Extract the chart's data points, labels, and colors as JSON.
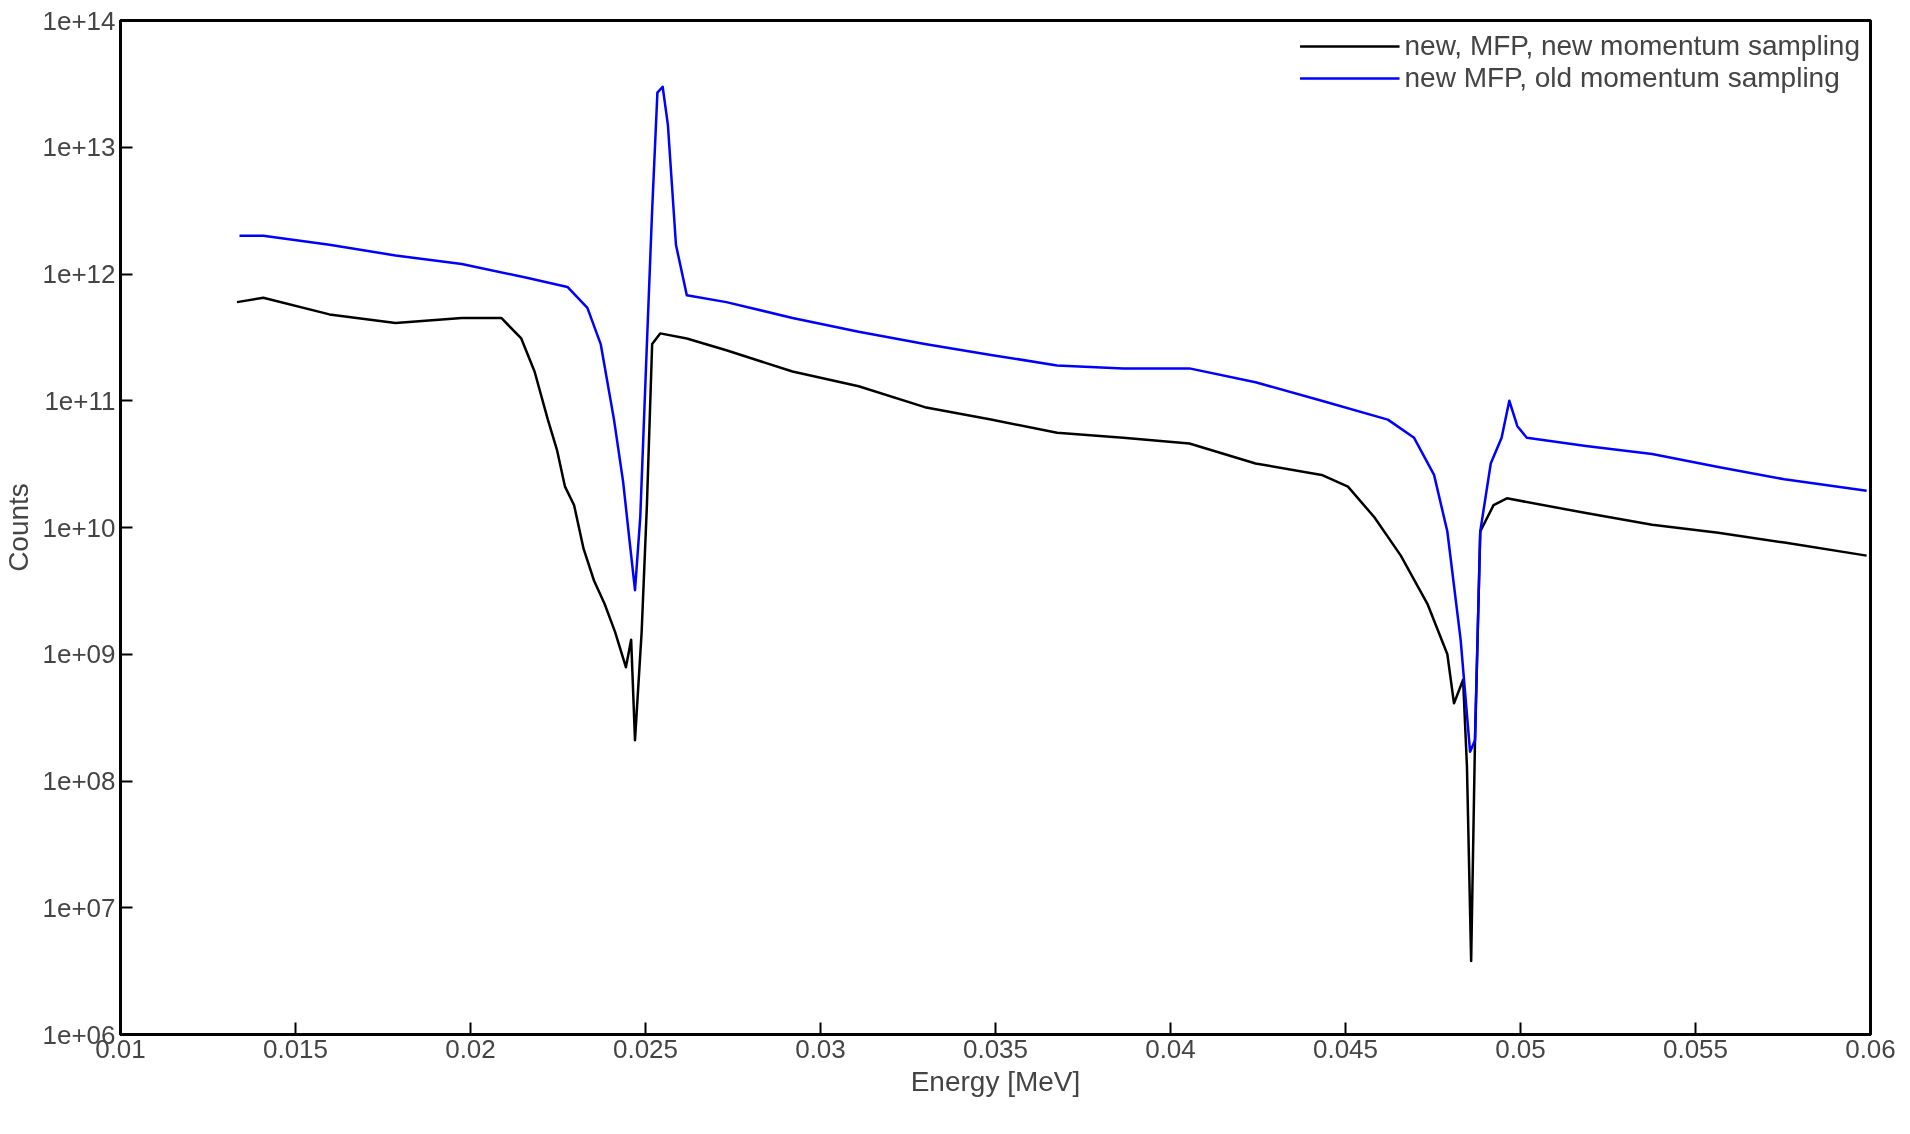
{
  "chart_data": {
    "type": "line",
    "xlabel": "Energy [MeV]",
    "ylabel": "Counts",
    "log": "y",
    "grid": false,
    "legend": "top right",
    "marker": "none",
    "line_style": "solid",
    "xlim": [
      0.01,
      0.06
    ],
    "xticks": [
      0.01,
      0.015,
      0.02,
      0.025,
      0.03,
      0.035,
      0.04,
      0.045,
      0.05,
      0.055,
      0.06
    ],
    "ylim": [
      1000000.0,
      100000000000000.0
    ],
    "yticks": [
      {
        "value": 1000000.0,
        "label": "1e+06"
      },
      {
        "value": 10000000.0,
        "label": "1e+07"
      },
      {
        "value": 100000000.0,
        "label": "1e+08"
      },
      {
        "value": 1000000000.0,
        "label": "1e+09"
      },
      {
        "value": 10000000000.0,
        "label": "1e+10"
      },
      {
        "value": 100000000000.0,
        "label": "1e+11"
      },
      {
        "value": 1000000000000.0,
        "label": "1e+12"
      },
      {
        "value": 10000000000000.0,
        "label": "1e+13"
      },
      {
        "value": 100000000000000.0,
        "label": "1e+14"
      }
    ],
    "series": [
      {
        "name": "new, MFP, new momentum sampling",
        "color": "#000000",
        "x": [
          0.01333,
          0.01408,
          0.01597,
          0.01786,
          0.01975,
          0.02088,
          0.02145,
          0.02183,
          0.02221,
          0.02247,
          0.0227,
          0.02296,
          0.02323,
          0.02353,
          0.02383,
          0.02413,
          0.02444,
          0.02459,
          0.0247,
          0.02489,
          0.02504,
          0.02519,
          0.02542,
          0.02618,
          0.02731,
          0.0292,
          0.03109,
          0.03298,
          0.03487,
          0.03676,
          0.03865,
          0.04054,
          0.04243,
          0.04432,
          0.04507,
          0.04583,
          0.04658,
          0.04734,
          0.04791,
          0.0481,
          0.04836,
          0.04847,
          0.04859,
          0.0487,
          0.04885,
          0.04923,
          0.04961,
          0.05187,
          0.05376,
          0.05565,
          0.05754,
          0.05989
        ],
        "values": [
          600000000000.0,
          650000000000.0,
          480000000000.0,
          410000000000.0,
          450000000000.0,
          450000000000.0,
          310000000000.0,
          170000000000.0,
          71000000000.0,
          41000000000.0,
          21000000000.0,
          15000000000.0,
          6800000000.0,
          3800000000.0,
          2500000000.0,
          1500000000.0,
          790000000.0,
          1300000000.0,
          210000000.0,
          1500000000.0,
          15000000000.0,
          280000000000.0,
          340000000000.0,
          310000000000.0,
          250000000000.0,
          170000000000.0,
          130000000000.0,
          89000000000.0,
          71000000000.0,
          56000000000.0,
          51000000000.0,
          46000000000.0,
          32000000000.0,
          26000000000.0,
          21000000000.0,
          12000000000.0,
          6000000000.0,
          2500000000.0,
          1000000000.0,
          410000000.0,
          630000000.0,
          130000000.0,
          3800000.0,
          210000000.0,
          9300000000.0,
          15000000000.0,
          17000000000.0,
          13000000000.0,
          10500000000.0,
          9100000000.0,
          7600000000.0,
          6000000000.0
        ]
      },
      {
        "name": "new MFP, old momentum sampling",
        "color": "#0000ff",
        "x": [
          0.0134,
          0.01408,
          0.01597,
          0.01786,
          0.01975,
          0.02164,
          0.02277,
          0.02334,
          0.02372,
          0.0241,
          0.02436,
          0.02455,
          0.0247,
          0.02485,
          0.02504,
          0.02519,
          0.02534,
          0.02549,
          0.02564,
          0.02587,
          0.02618,
          0.02731,
          0.0292,
          0.03109,
          0.03298,
          0.03487,
          0.03676,
          0.03865,
          0.04054,
          0.04243,
          0.04432,
          0.04621,
          0.04696,
          0.04753,
          0.04791,
          0.04829,
          0.04856,
          0.0487,
          0.04885,
          0.04915,
          0.04946,
          0.04968,
          0.04991,
          0.05018,
          0.05187,
          0.05376,
          0.05565,
          0.05754,
          0.05989
        ],
        "values": [
          2000000000000.0,
          2000000000000.0,
          1700000000000.0,
          1400000000000.0,
          1200000000000.0,
          930000000000.0,
          790000000000.0,
          540000000000.0,
          280000000000.0,
          71000000000.0,
          23000000000.0,
          7600000000.0,
          3200000000.0,
          12000000000.0,
          280000000000.0,
          3200000000000.0,
          27000000000000.0,
          30000000000000.0,
          15000000000000.0,
          1700000000000.0,
          680000000000.0,
          600000000000.0,
          450000000000.0,
          350000000000.0,
          280000000000.0,
          230000000000.0,
          190000000000.0,
          180000000000.0,
          180000000000.0,
          140000000000.0,
          100000000000.0,
          71000000000.0,
          51000000000.0,
          26000000000.0,
          9300000000.0,
          1300000000.0,
          170000000.0,
          210000000.0,
          9300000000.0,
          32000000000.0,
          51000000000.0,
          100000000000.0,
          63000000000.0,
          51000000000.0,
          44000000000.0,
          38000000000.0,
          30000000000.0,
          24000000000.0,
          19500000000.0
        ]
      }
    ]
  }
}
